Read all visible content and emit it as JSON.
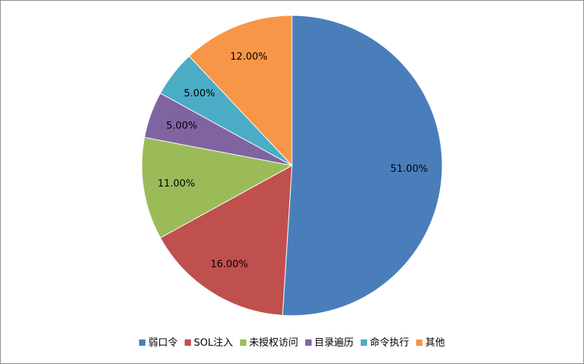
{
  "chart_data": {
    "type": "pie",
    "categories": [
      "弱口令",
      "SOL注入",
      "未授权访问",
      "目录遍历",
      "命令执行",
      "其他"
    ],
    "values": [
      51,
      16,
      11,
      5,
      5,
      12
    ],
    "value_labels": [
      "51.00%",
      "16.00%",
      "11.00%",
      "5.00%",
      "5.00%",
      "12.00%"
    ],
    "colors": [
      "#4a7ebb",
      "#c0504d",
      "#9bbb59",
      "#8064a2",
      "#4bacc6",
      "#f79646"
    ],
    "legend": "bottom"
  }
}
